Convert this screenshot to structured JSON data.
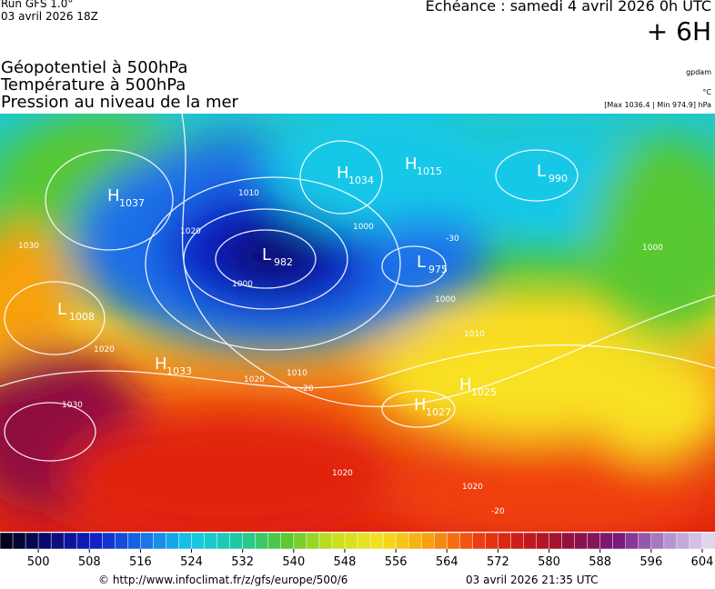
{
  "header": {
    "run": "Run GFS 1.0°",
    "date": "03 avril 2026 18Z",
    "echeance": "Echéance : samedi 4 avril 2026 0h UTC",
    "offset": "+ 6H",
    "titles": [
      "Géopotentiel à 500hPa",
      "Température à 500hPa",
      "Pression au niveau de la mer"
    ],
    "unit_geo": "gpdam",
    "unit_temp": "°C",
    "extremes": "[Max 1036.4 | Min 974.9] hPa"
  },
  "map": {
    "centers": [
      {
        "kind": "H",
        "value": "1037"
      },
      {
        "kind": "L",
        "value": "982"
      },
      {
        "kind": "H",
        "value": "1034"
      },
      {
        "kind": "H",
        "value": "1015"
      },
      {
        "kind": "L",
        "value": "990"
      },
      {
        "kind": "L",
        "value": "975"
      },
      {
        "kind": "L",
        "value": "1008"
      },
      {
        "kind": "H",
        "value": "1033"
      },
      {
        "kind": "H",
        "value": "1027"
      },
      {
        "kind": "H",
        "value": "1025"
      }
    ],
    "contour_labels": [
      "1010",
      "1000",
      "1020",
      "1000",
      "1000",
      "1000",
      "1030",
      "1020",
      "1010",
      "1020",
      "1030",
      "1020",
      "1020",
      "1010",
      "-30",
      "-20",
      "-20"
    ]
  },
  "colorbar": {
    "range": [
      494,
      606
    ],
    "ticks": [
      500,
      508,
      516,
      524,
      532,
      540,
      548,
      556,
      564,
      572,
      580,
      588,
      596,
      604
    ],
    "colors": [
      "#000010",
      "#0a0a70",
      "#1020c8",
      "#1a70e8",
      "#18c8e8",
      "#20c8a0",
      "#58c830",
      "#c8e020",
      "#f8e020",
      "#f8a010",
      "#f04010",
      "#c81818",
      "#901040",
      "#7a1a80",
      "#b090d0",
      "#e8e0f0"
    ]
  },
  "footer": {
    "url": "© http://www.infoclimat.fr/z/gfs/europe/500/6",
    "stamp": "03 avril 2026 21:35 UTC"
  }
}
